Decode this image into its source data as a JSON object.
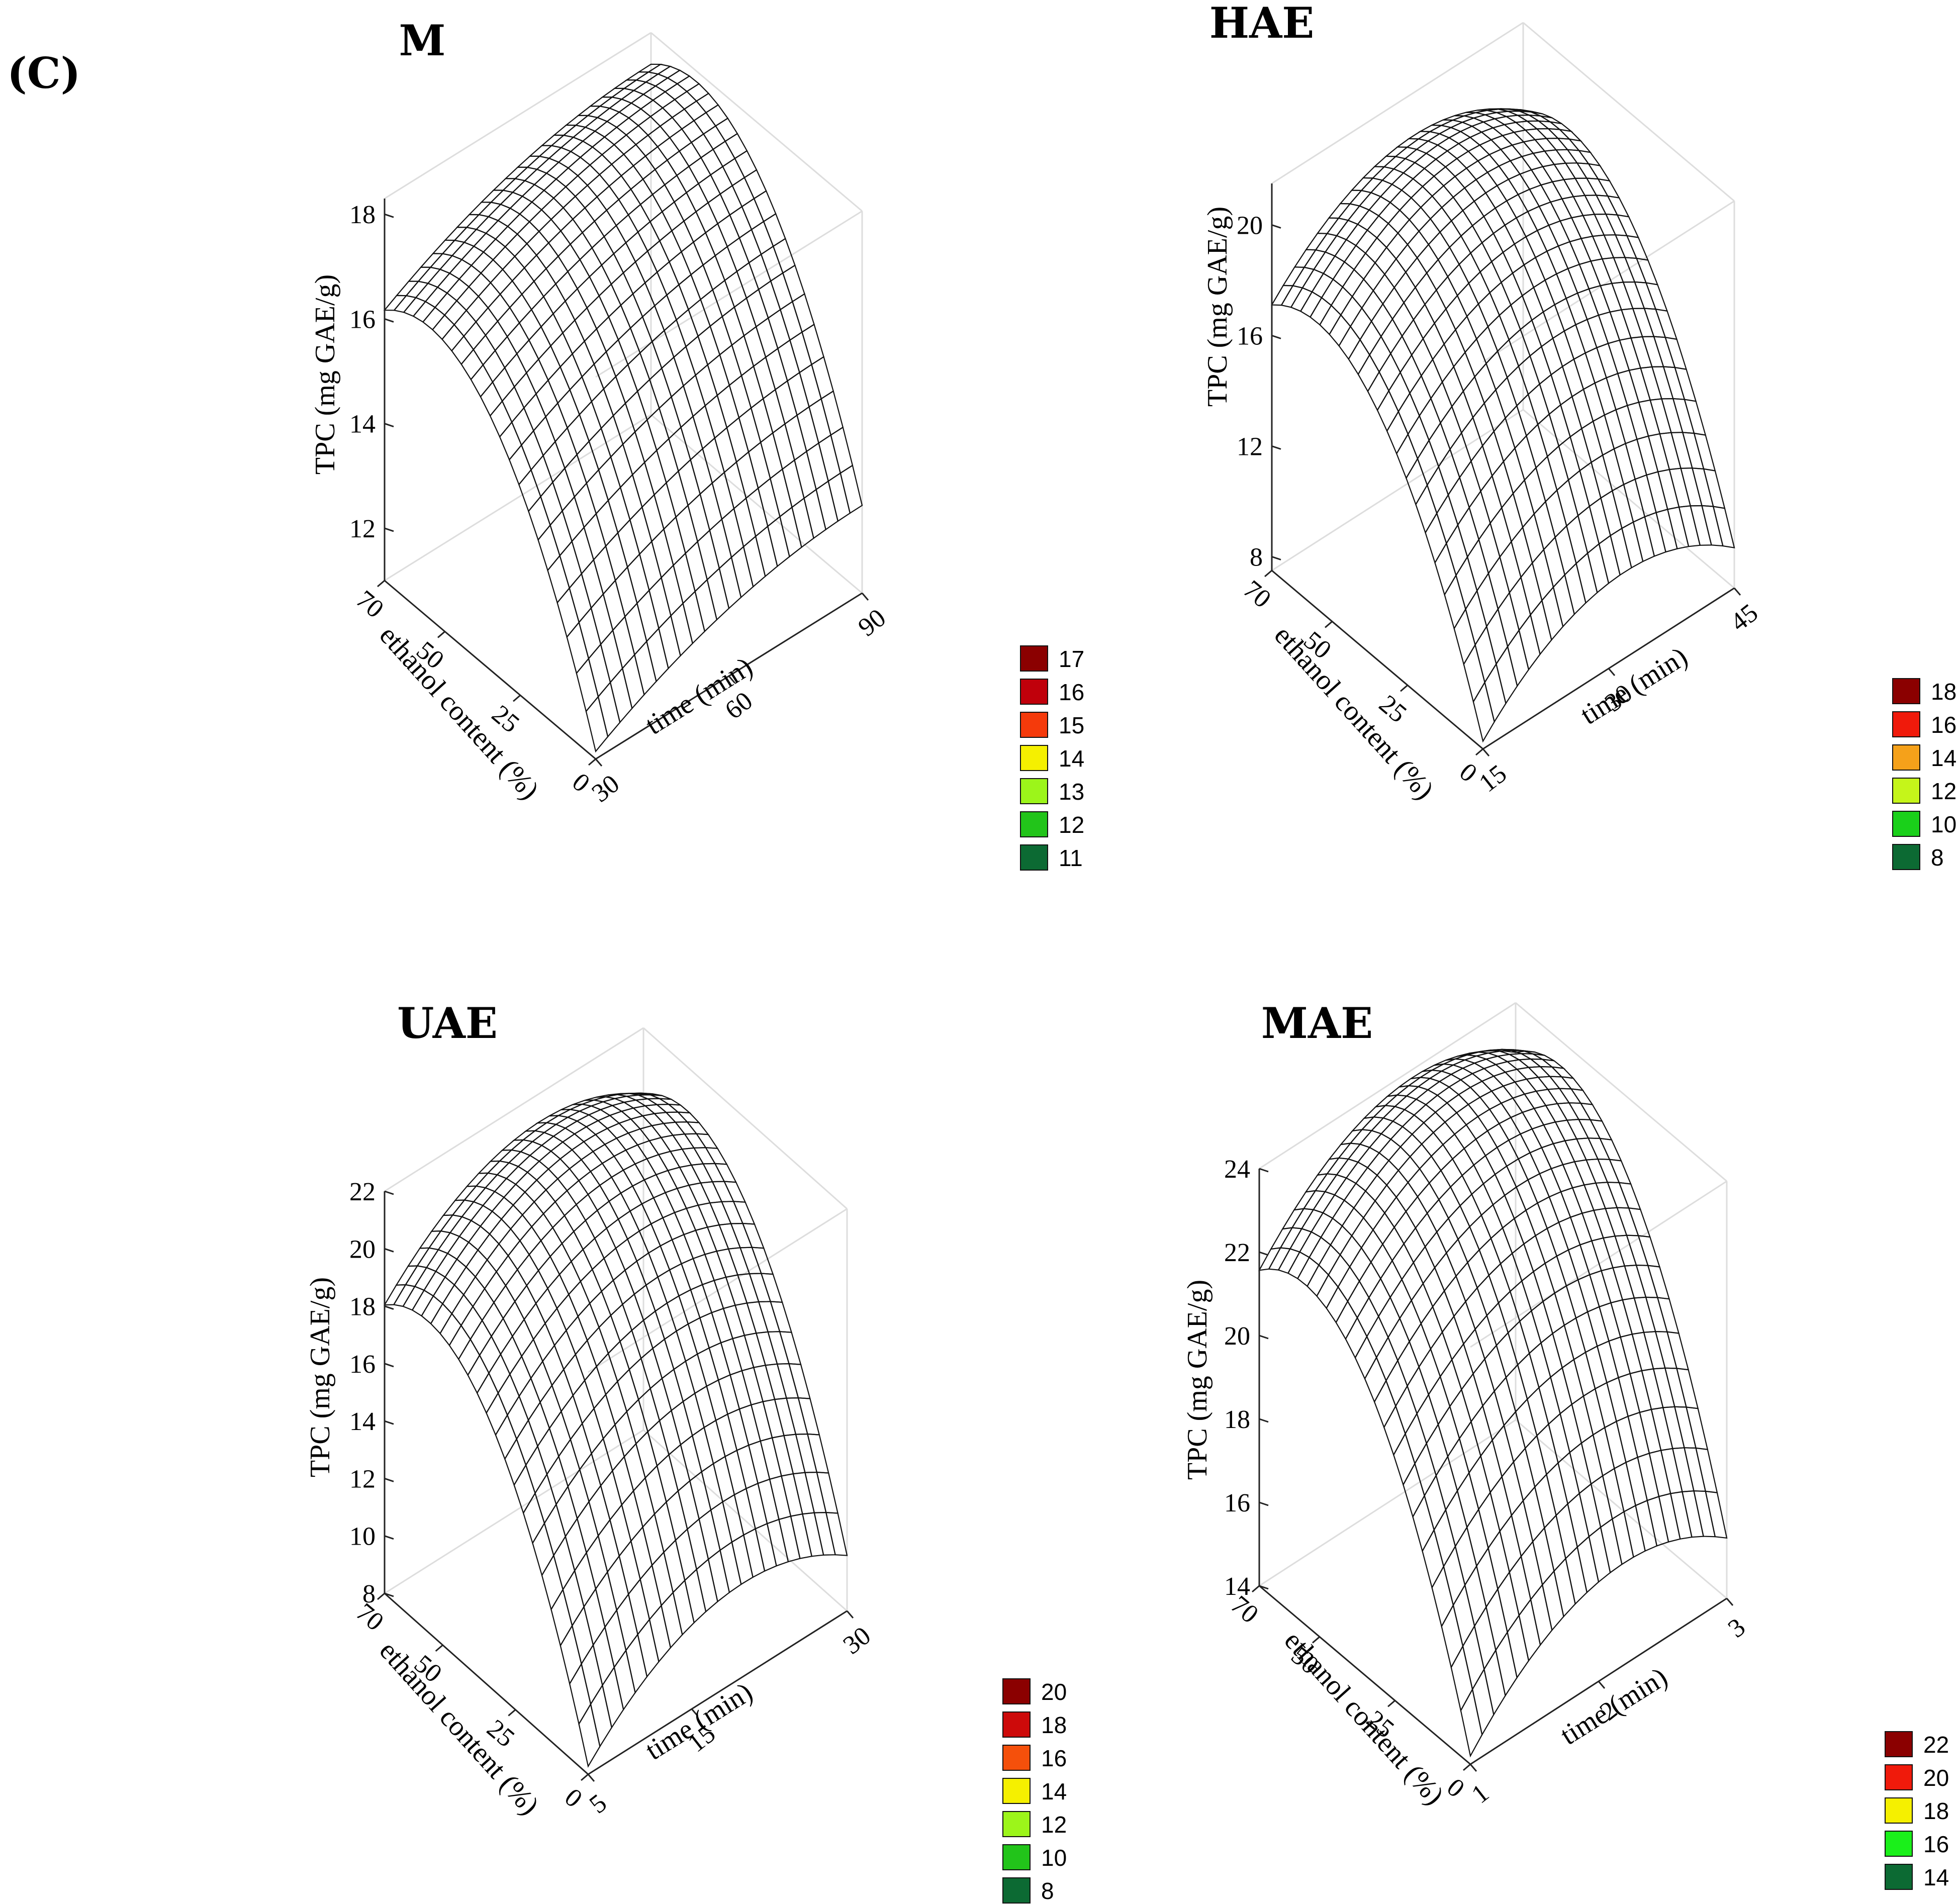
{
  "figure": {
    "panel_letter": "(C)"
  },
  "chart_data": [
    {
      "type": "surface3d",
      "title": "M",
      "zlabel": "TPC (mg GAE/g)",
      "xlabel": "ethanol content (%)",
      "ylabel": "time (min)",
      "x_ticks": [
        "0",
        "25",
        "50",
        "70"
      ],
      "y_ticks": [
        "30",
        "60",
        "90"
      ],
      "z_ticks": [
        "12",
        "14",
        "16",
        "18"
      ],
      "zlim": [
        11,
        18.3
      ],
      "xlim": [
        0,
        70
      ],
      "ylim": [
        30,
        90
      ],
      "peak": {
        "ethanol": 55,
        "time": 90,
        "tpc": 18.1
      },
      "legend": [
        {
          "label": "17",
          "color": "#8b0000"
        },
        {
          "label": "16",
          "color": "#c0000b"
        },
        {
          "label": "15",
          "color": "#f53a0b"
        },
        {
          "label": "14",
          "color": "#f5f000"
        },
        {
          "label": "13",
          "color": "#9cf51a"
        },
        {
          "label": "12",
          "color": "#22c41a"
        },
        {
          "label": "11",
          "color": "#0c6a33"
        }
      ]
    },
    {
      "type": "surface3d",
      "title": "HAE",
      "zlabel": "TPC (mg GAE/g)",
      "xlabel": "ethanol content (%)",
      "ylabel": "time (min)",
      "x_ticks": [
        "0",
        "25",
        "50",
        "70"
      ],
      "y_ticks": [
        "15",
        "30",
        "45"
      ],
      "z_ticks": [
        "8",
        "12",
        "16",
        "20"
      ],
      "zlim": [
        7.5,
        21.5
      ],
      "xlim": [
        0,
        70
      ],
      "ylim": [
        15,
        45
      ],
      "peak": {
        "ethanol": 55,
        "time": 32,
        "tpc": 20.7
      },
      "legend": [
        {
          "label": "18",
          "color": "#8b0000"
        },
        {
          "label": "16",
          "color": "#f01a0b"
        },
        {
          "label": "14",
          "color": "#f5a11a"
        },
        {
          "label": "12",
          "color": "#c5f51a"
        },
        {
          "label": "10",
          "color": "#1ad01a"
        },
        {
          "label": "8",
          "color": "#0c6a33"
        }
      ]
    },
    {
      "type": "surface3d",
      "title": "UAE",
      "zlabel": "TPC (mg GAE/g)",
      "xlabel": "ethanol content (%)",
      "ylabel": "time (min)",
      "x_ticks": [
        "0",
        "25",
        "50",
        "70"
      ],
      "y_ticks": [
        "5",
        "15",
        "30"
      ],
      "z_ticks": [
        "8",
        "10",
        "12",
        "14",
        "16",
        "18",
        "20",
        "22"
      ],
      "zlim": [
        8,
        22
      ],
      "xlim": [
        0,
        70
      ],
      "ylim": [
        5,
        30
      ],
      "peak": {
        "ethanol": 55,
        "time": 20,
        "tpc": 21.8
      },
      "legend": [
        {
          "label": "20",
          "color": "#8b0000"
        },
        {
          "label": "18",
          "color": "#cd0a0a"
        },
        {
          "label": "16",
          "color": "#f5500b"
        },
        {
          "label": "14",
          "color": "#f5f000"
        },
        {
          "label": "12",
          "color": "#9cf51a"
        },
        {
          "label": "10",
          "color": "#22c41a"
        },
        {
          "label": "8",
          "color": "#0c6a33"
        }
      ]
    },
    {
      "type": "surface3d",
      "title": "MAE",
      "zlabel": "TPC (mg GAE/g)",
      "xlabel": "ethanol content (%)",
      "ylabel": "time (min)",
      "x_ticks": [
        "0",
        "25",
        "50",
        "70"
      ],
      "y_ticks": [
        "1",
        "2",
        "3"
      ],
      "z_ticks": [
        "14",
        "16",
        "18",
        "20",
        "22",
        "24"
      ],
      "zlim": [
        14,
        24
      ],
      "xlim": [
        0,
        70
      ],
      "ylim": [
        1,
        3
      ],
      "peak": {
        "ethanol": 55,
        "time": 2.2,
        "tpc": 24.4
      },
      "legend": [
        {
          "label": "22",
          "color": "#8b0000"
        },
        {
          "label": "20",
          "color": "#f01a0b"
        },
        {
          "label": "18",
          "color": "#f5f000"
        },
        {
          "label": "16",
          "color": "#1af01a"
        },
        {
          "label": "14",
          "color": "#0c6a33"
        }
      ]
    }
  ]
}
